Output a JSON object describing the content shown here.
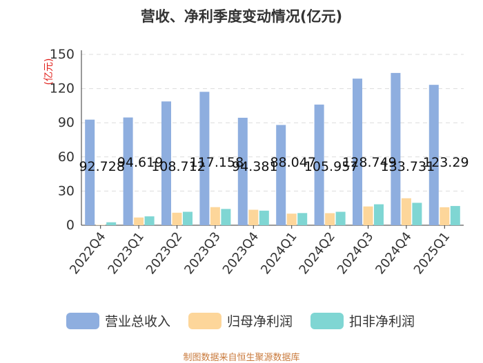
{
  "chart_data": {
    "type": "bar",
    "title": "营收、净利季度变动情况(亿元)",
    "ylabel": "(亿元)",
    "xlabel": "",
    "ylim": [
      0,
      150
    ],
    "yticks": [
      0,
      30,
      60,
      90,
      120,
      150
    ],
    "grid": true,
    "legend_position": "bottom",
    "categories": [
      "2022Q4",
      "2023Q1",
      "2023Q2",
      "2023Q3",
      "2023Q4",
      "2024Q1",
      "2024Q2",
      "2024Q3",
      "2024Q4",
      "2025Q1"
    ],
    "series": [
      {
        "name": "营业总收入",
        "color": "#8eaedf",
        "values": [
          92.728,
          94.619,
          108.712,
          117.158,
          94.381,
          88.047,
          105.957,
          128.749,
          133.731,
          123.29
        ],
        "data_labels": [
          "92.728",
          "94.619",
          "108.712",
          "117.158",
          "94.381",
          "88.047",
          "105.957",
          "128.749",
          "133.731",
          "123.29"
        ]
      },
      {
        "name": "归母净利润",
        "color": "#fdd69a",
        "values": [
          0.3,
          6.8,
          11.0,
          15.9,
          13.6,
          10.2,
          10.6,
          16.5,
          23.7,
          15.8
        ]
      },
      {
        "name": "扣非净利润",
        "color": "#7fd6d3",
        "values": [
          2.6,
          7.8,
          11.8,
          14.3,
          12.8,
          10.7,
          11.8,
          18.4,
          19.7,
          16.9
        ]
      }
    ]
  },
  "source_note": "制图数据来自恒生聚源数据库"
}
